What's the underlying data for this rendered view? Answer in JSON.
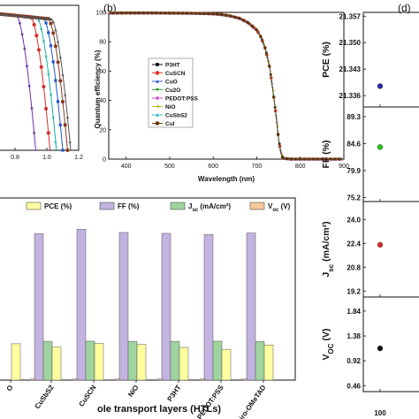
{
  "panels": {
    "b": "(b)",
    "d": "(d)"
  },
  "chart_data": [
    {
      "id": "a",
      "type": "line",
      "xlim": [
        0.65,
        1.2
      ],
      "xticks": [
        "0.8",
        "1.0",
        "1.2"
      ],
      "curves": [
        {
          "voc": 0.93,
          "color": "#6c2fa3",
          "marker": "diamond"
        },
        {
          "voc": 1.02,
          "color": "#d4302a",
          "marker": "circle"
        },
        {
          "voc": 1.06,
          "color": "#16b2a2",
          "marker": "triangle"
        },
        {
          "voc": 1.1,
          "color": "#2255cc",
          "marker": "square"
        },
        {
          "voc": 1.13,
          "color": "#8a3a1f",
          "marker": "circle"
        },
        {
          "voc": 1.15,
          "color": "#555555",
          "marker": "triangle"
        }
      ]
    },
    {
      "id": "b",
      "type": "line",
      "xlabel": "Wavelength (nm)",
      "ylabel": "Quantum efficiency (%)",
      "xlim": [
        360,
        900
      ],
      "xticks": [
        400,
        500,
        600,
        700,
        800,
        900
      ],
      "ylim": [
        0,
        100
      ],
      "yticks": [
        0,
        20,
        40,
        60,
        80,
        100
      ],
      "legend": "center-right",
      "series": [
        {
          "name": "P3HT",
          "color": "#000000",
          "marker": "square"
        },
        {
          "name": "CuSCN",
          "color": "#e03020",
          "marker": "circle"
        },
        {
          "name": "CuO",
          "color": "#1f4fd8",
          "marker": "triangle"
        },
        {
          "name": "Cu2O",
          "color": "#20a020",
          "marker": "triangle-down"
        },
        {
          "name": "PEDOT:PSS",
          "color": "#cc33cc",
          "marker": "diamond"
        },
        {
          "name": "NiO",
          "color": "#b0b000",
          "marker": "triangle-left"
        },
        {
          "name": "CuSbS2",
          "color": "#1fb2c8",
          "marker": "triangle"
        },
        {
          "name": "CuI",
          "color": "#663300",
          "marker": "circle"
        }
      ],
      "x": [
        360,
        400,
        450,
        500,
        550,
        600,
        620,
        640,
        660,
        680,
        700,
        710,
        720,
        730,
        740,
        745,
        750,
        755,
        760,
        780,
        800,
        850,
        900
      ],
      "y": [
        99.5,
        99.6,
        99.6,
        99.5,
        99.4,
        99,
        98.5,
        97.5,
        96,
        93,
        88,
        83,
        75,
        62,
        40,
        28,
        14,
        5,
        0.5,
        0,
        0,
        0,
        0
      ]
    },
    {
      "id": "c",
      "type": "bar",
      "xlabel": "ole transport layers (HTLs)",
      "legend": "top",
      "legend_entries": [
        {
          "label": "PCE (%)",
          "color": "#ffffa0"
        },
        {
          "label": "FF (%)",
          "color": "#c3b3e0"
        },
        {
          "label": "J",
          "sub": "sc",
          "suffix": " (mA/cm²)",
          "color": "#9fd49f"
        },
        {
          "label": "V",
          "sub": "oc",
          "suffix": " (V)",
          "color": "#f6c79a"
        }
      ],
      "categories": [
        "O",
        "CuSbS2",
        "CuSCN",
        "NiO",
        "P3HT",
        "PEDOT:PSS",
        "Spiro-OMeTAD"
      ],
      "series": [
        {
          "name": "FF (%)",
          "color": "#c3b3e0",
          "values": [
            null,
            84.6,
            87.2,
            85.3,
            84.8,
            84.1,
            85
          ]
        },
        {
          "name": "Jsc (mA/cm²)",
          "color": "#9fd49f",
          "values": [
            null,
            22.4,
            22.5,
            22.4,
            22.4,
            22.5,
            22.4
          ]
        },
        {
          "name": "PCE (%)",
          "color": "#ffffa0",
          "values": [
            21,
            19.1,
            21.2,
            20.6,
            18.9,
            17.8,
            20.3
          ]
        },
        {
          "name": "Voc (V)",
          "color": "#f6c79a",
          "values": [
            null,
            0.6,
            0.6,
            0.6,
            0.6,
            0.6,
            0.6
          ]
        }
      ]
    },
    {
      "id": "d",
      "type": "scatter",
      "x_value": 100,
      "xticks": [
        "100"
      ],
      "subplots": [
        {
          "ylabel": "PCE (%)",
          "yticks": [
            "21.357",
            "21.350",
            "21.343",
            "21.336"
          ],
          "ylim": [
            21.333,
            21.358
          ],
          "value": 21.3385,
          "color": "#2a2aa8"
        },
        {
          "ylabel": "FF (%)",
          "yticks": [
            "89.3",
            "84.6",
            "79.9",
            "75.2"
          ],
          "ylim": [
            74.5,
            91
          ],
          "value": 84.0,
          "color": "#22c422"
        },
        {
          "ylabel_main": "J",
          "ylabel_sub": "sc",
          "ylabel_unit": " (mA/cm²)",
          "yticks": [
            "24.0",
            "22.4",
            "20.8",
            "19.2"
          ],
          "ylim": [
            18.8,
            25.2
          ],
          "value": 22.3,
          "color": "#d42a2a"
        },
        {
          "ylabel_main": "V",
          "ylabel_sub": "OC",
          "ylabel_unit": " (V)",
          "yticks": [
            "1.84",
            "1.38",
            "0.92",
            "0.46"
          ],
          "ylim": [
            0.35,
            2.1
          ],
          "value": 1.15,
          "color": "#111111"
        }
      ]
    }
  ]
}
